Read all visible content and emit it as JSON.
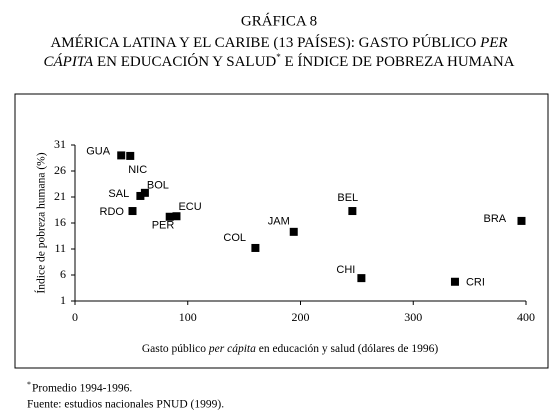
{
  "chart_data": {
    "type": "scatter",
    "title": "GRÁFICA 8",
    "subtitle_parts": [
      "AMÉRICA LATINA Y EL CARIBE (13 PAÍSES): GASTO PÚBLICO",
      "PER",
      "CÁPITA",
      "EN EDUCACIÓN Y SALUD",
      "*",
      "E ÍNDICE DE POBREZA HUMANA"
    ],
    "x_label_parts": [
      "Gasto público",
      "per cápita",
      "en educación y salud (dólares de 1996)"
    ],
    "y_label": "Índice de pobreza humana (%)",
    "labels": [
      "GUA",
      "NIC",
      "SAL",
      "BOL",
      "RDO",
      "PER",
      "ECU",
      "COL",
      "JAM",
      "BEL",
      "BRA",
      "CHI",
      "CRI"
    ],
    "x": [
      41,
      49,
      58,
      62,
      51,
      84,
      90,
      160,
      194,
      246,
      396,
      254,
      337
    ],
    "values": [
      29,
      28.9,
      21.2,
      21.8,
      18.3,
      17.2,
      17.3,
      11.2,
      14.3,
      18.3,
      16.4,
      5.4,
      4.7
    ],
    "color": "#000000",
    "xlim": [
      0,
      400
    ],
    "xticks": [
      0,
      100,
      200,
      300,
      400
    ],
    "ylim": [
      1,
      31
    ],
    "yticks": [
      1,
      6,
      11,
      16,
      21,
      26,
      31
    ],
    "grid": false,
    "footnote_mark": "*",
    "footnote": "Promedio 1994-1996.",
    "source": "Fuente: estudios nacionales PNUD (1999)."
  }
}
